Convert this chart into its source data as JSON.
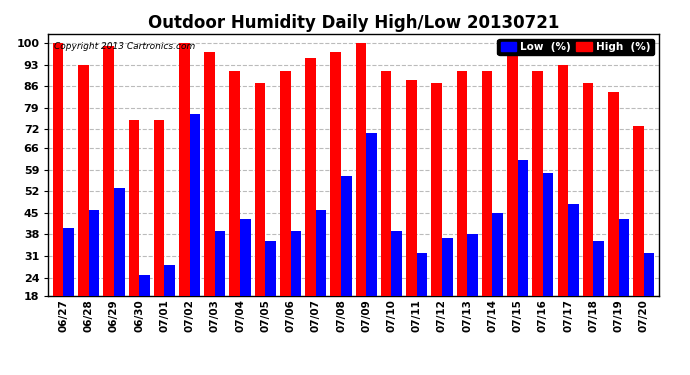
{
  "title": "Outdoor Humidity Daily High/Low 20130721",
  "copyright": "Copyright 2013 Cartronics.com",
  "categories": [
    "06/27",
    "06/28",
    "06/29",
    "06/30",
    "07/01",
    "07/02",
    "07/03",
    "07/04",
    "07/05",
    "07/06",
    "07/07",
    "07/08",
    "07/09",
    "07/10",
    "07/11",
    "07/12",
    "07/13",
    "07/14",
    "07/15",
    "07/16",
    "07/17",
    "07/18",
    "07/19",
    "07/20"
  ],
  "high": [
    100,
    93,
    99,
    75,
    75,
    100,
    97,
    91,
    87,
    91,
    95,
    97,
    100,
    91,
    88,
    87,
    91,
    91,
    97,
    91,
    93,
    87,
    84,
    73
  ],
  "low": [
    40,
    46,
    53,
    25,
    28,
    77,
    39,
    43,
    36,
    39,
    46,
    57,
    71,
    39,
    32,
    37,
    38,
    45,
    62,
    58,
    48,
    36,
    43,
    32
  ],
  "y_ticks": [
    18,
    24,
    31,
    38,
    45,
    52,
    59,
    66,
    72,
    79,
    86,
    93,
    100
  ],
  "ylim": [
    18,
    103
  ],
  "bar_color_low": "#0000ff",
  "bar_color_high": "#ff0000",
  "background_color": "#ffffff",
  "grid_color": "#bbbbbb",
  "title_fontsize": 12,
  "legend_low_label": "Low  (%)",
  "legend_high_label": "High  (%)"
}
